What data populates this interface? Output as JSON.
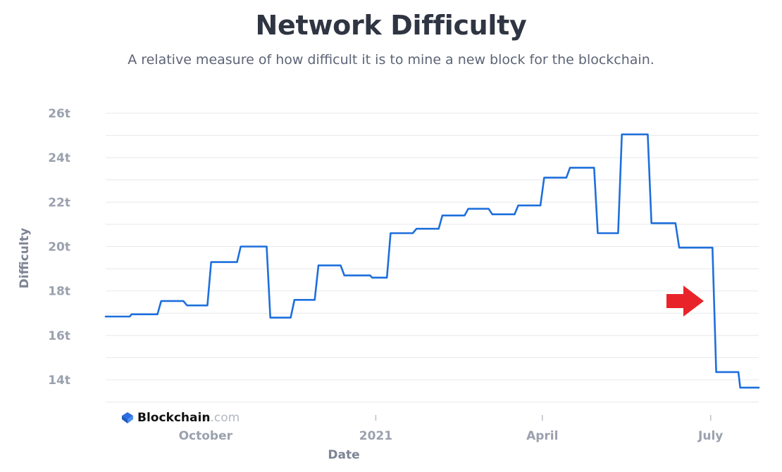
{
  "title": "Network Difficulty",
  "subtitle": "A relative measure of how difficult it is to mine a new block for the blockchain.",
  "watermark": {
    "brand": "Blockchain",
    "domain": ".com"
  },
  "colors": {
    "line": "#1d6fdc",
    "arrow": "#e8242a",
    "grid": "#e6e8ec",
    "text": "#2f3542"
  },
  "chart_data": {
    "type": "line",
    "xlabel": "Date",
    "ylabel": "Difficulty",
    "ylim": [
      13,
      26
    ],
    "yticks": [
      {
        "value": 14,
        "label": "14t"
      },
      {
        "value": 16,
        "label": "16t"
      },
      {
        "value": 18,
        "label": "18t"
      },
      {
        "value": 20,
        "label": "20t"
      },
      {
        "value": 22,
        "label": "22t"
      },
      {
        "value": 24,
        "label": "24t"
      },
      {
        "value": 26,
        "label": "26t"
      }
    ],
    "xlim": [
      "2020-08-08",
      "2021-07-27"
    ],
    "xticks": [
      {
        "date": "2020-10-01",
        "label": "October"
      },
      {
        "date": "2021-01-01",
        "label": "2021"
      },
      {
        "date": "2021-04-01",
        "label": "April"
      },
      {
        "date": "2021-07-01",
        "label": "July"
      }
    ],
    "grid": true,
    "annotation": "red arrow pointing right at the July drop",
    "series": [
      {
        "points": [
          [
            "2020-08-08",
            16.85
          ],
          [
            "2020-08-21",
            16.85
          ],
          [
            "2020-08-22",
            16.95
          ],
          [
            "2020-09-05",
            16.95
          ],
          [
            "2020-09-07",
            17.55
          ],
          [
            "2020-09-19",
            17.55
          ],
          [
            "2020-09-21",
            17.35
          ],
          [
            "2020-10-02",
            17.35
          ],
          [
            "2020-10-04",
            19.3
          ],
          [
            "2020-10-18",
            19.3
          ],
          [
            "2020-10-20",
            20.0
          ],
          [
            "2020-11-03",
            20.0
          ],
          [
            "2020-11-05",
            16.8
          ],
          [
            "2020-11-16",
            16.8
          ],
          [
            "2020-11-18",
            17.6
          ],
          [
            "2020-11-29",
            17.6
          ],
          [
            "2020-12-01",
            19.15
          ],
          [
            "2020-12-13",
            19.15
          ],
          [
            "2020-12-15",
            18.7
          ],
          [
            "2020-12-29",
            18.7
          ],
          [
            "2020-12-30",
            18.6
          ],
          [
            "2021-01-07",
            18.6
          ],
          [
            "2021-01-09",
            20.6
          ],
          [
            "2021-01-21",
            20.6
          ],
          [
            "2021-01-23",
            20.8
          ],
          [
            "2021-02-04",
            20.8
          ],
          [
            "2021-02-06",
            21.4
          ],
          [
            "2021-02-18",
            21.4
          ],
          [
            "2021-02-20",
            21.7
          ],
          [
            "2021-03-03",
            21.7
          ],
          [
            "2021-03-05",
            21.45
          ],
          [
            "2021-03-17",
            21.45
          ],
          [
            "2021-03-19",
            21.85
          ],
          [
            "2021-03-31",
            21.85
          ],
          [
            "2021-04-02",
            23.1
          ],
          [
            "2021-04-14",
            23.1
          ],
          [
            "2021-04-16",
            23.55
          ],
          [
            "2021-04-29",
            23.55
          ],
          [
            "2021-05-01",
            20.6
          ],
          [
            "2021-05-12",
            20.6
          ],
          [
            "2021-05-14",
            25.05
          ],
          [
            "2021-05-28",
            25.05
          ],
          [
            "2021-05-30",
            21.05
          ],
          [
            "2021-06-12",
            21.05
          ],
          [
            "2021-06-14",
            19.95
          ],
          [
            "2021-07-02",
            19.95
          ],
          [
            "2021-07-04",
            14.35
          ],
          [
            "2021-07-16",
            14.35
          ],
          [
            "2021-07-17",
            13.65
          ],
          [
            "2021-07-27",
            13.65
          ]
        ]
      }
    ]
  }
}
